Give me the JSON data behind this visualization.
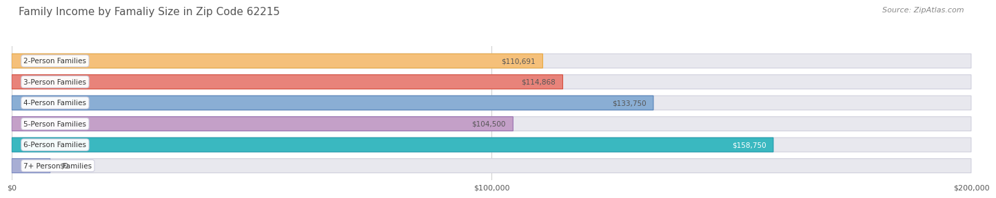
{
  "title": "Family Income by Famaliy Size in Zip Code 62215",
  "source": "Source: ZipAtlas.com",
  "categories": [
    "2-Person Families",
    "3-Person Families",
    "4-Person Families",
    "5-Person Families",
    "6-Person Families",
    "7+ Person Families"
  ],
  "values": [
    110691,
    114868,
    133750,
    104500,
    158750,
    0
  ],
  "bar_colors": [
    "#f5c07a",
    "#e8837a",
    "#8aaed4",
    "#c4a0c8",
    "#3ab8c0",
    "#a8aed4"
  ],
  "bar_edge_colors": [
    "#e8a840",
    "#d45040",
    "#5080b8",
    "#9870b0",
    "#1898aa",
    "#7888c0"
  ],
  "label_colors": [
    "#555555",
    "#555555",
    "#555555",
    "#555555",
    "#ffffff",
    "#555555"
  ],
  "xmax": 200000,
  "xticks": [
    0,
    100000,
    200000
  ],
  "xlabels": [
    "$0",
    "$100,000",
    "$200,000"
  ],
  "bar_bg_color": "#e8e8ee",
  "bar_bg_edge": "#d0d0dd",
  "title_fontsize": 11,
  "source_fontsize": 8,
  "bar_height": 0.68,
  "value_labels": [
    "$110,691",
    "$114,868",
    "$133,750",
    "$104,500",
    "$158,750",
    "$0"
  ]
}
